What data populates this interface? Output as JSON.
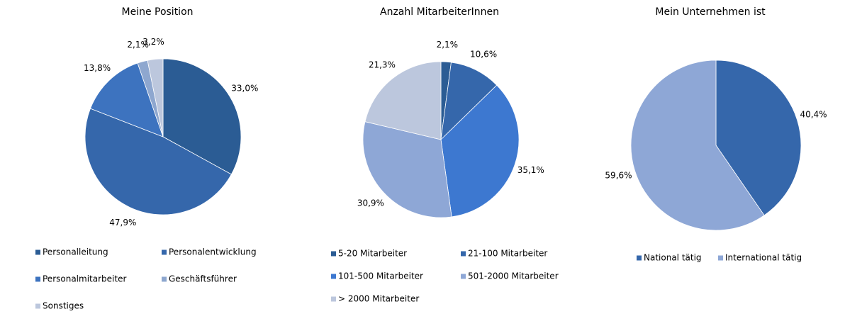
{
  "chart_data": [
    {
      "type": "pie",
      "title": "Meine Position",
      "categories": [
        "Personalleitung",
        "Personalentwicklung",
        "Personalmitarbeiter",
        "Geschäftsführer",
        "Sonstiges"
      ],
      "values": [
        33.0,
        47.9,
        13.8,
        2.1,
        3.2
      ],
      "value_labels": [
        "33,0%",
        "47,9%",
        "13,8%",
        "2,1%",
        "3,2%"
      ],
      "colors": [
        "#2b5c94",
        "#3567ab",
        "#3d73bf",
        "#8ea7cf",
        "#bcc7dd"
      ]
    },
    {
      "type": "pie",
      "title": "Anzahl MitarbeiterInnen",
      "categories": [
        "5-20 Mitarbeiter",
        "21-100 Mitarbeiter",
        "101-500 Mitarbeiter",
        "501-2000 Mitarbeiter",
        "> 2000 Mitarbeiter"
      ],
      "values": [
        2.1,
        10.6,
        35.1,
        30.9,
        21.3
      ],
      "value_labels": [
        "2,1%",
        "10,6%",
        "35,1%",
        "30,9%",
        "21,3%"
      ],
      "colors": [
        "#2b5c94",
        "#3567ab",
        "#3d78d0",
        "#8ea7d6",
        "#bcc7dd"
      ]
    },
    {
      "type": "pie",
      "title": "Mein Unternehmen ist",
      "categories": [
        "National tätig",
        "International tätig"
      ],
      "values": [
        40.4,
        59.6
      ],
      "value_labels": [
        "40,4%",
        "59,6%"
      ],
      "colors": [
        "#3567ab",
        "#8ea7d6"
      ]
    }
  ]
}
